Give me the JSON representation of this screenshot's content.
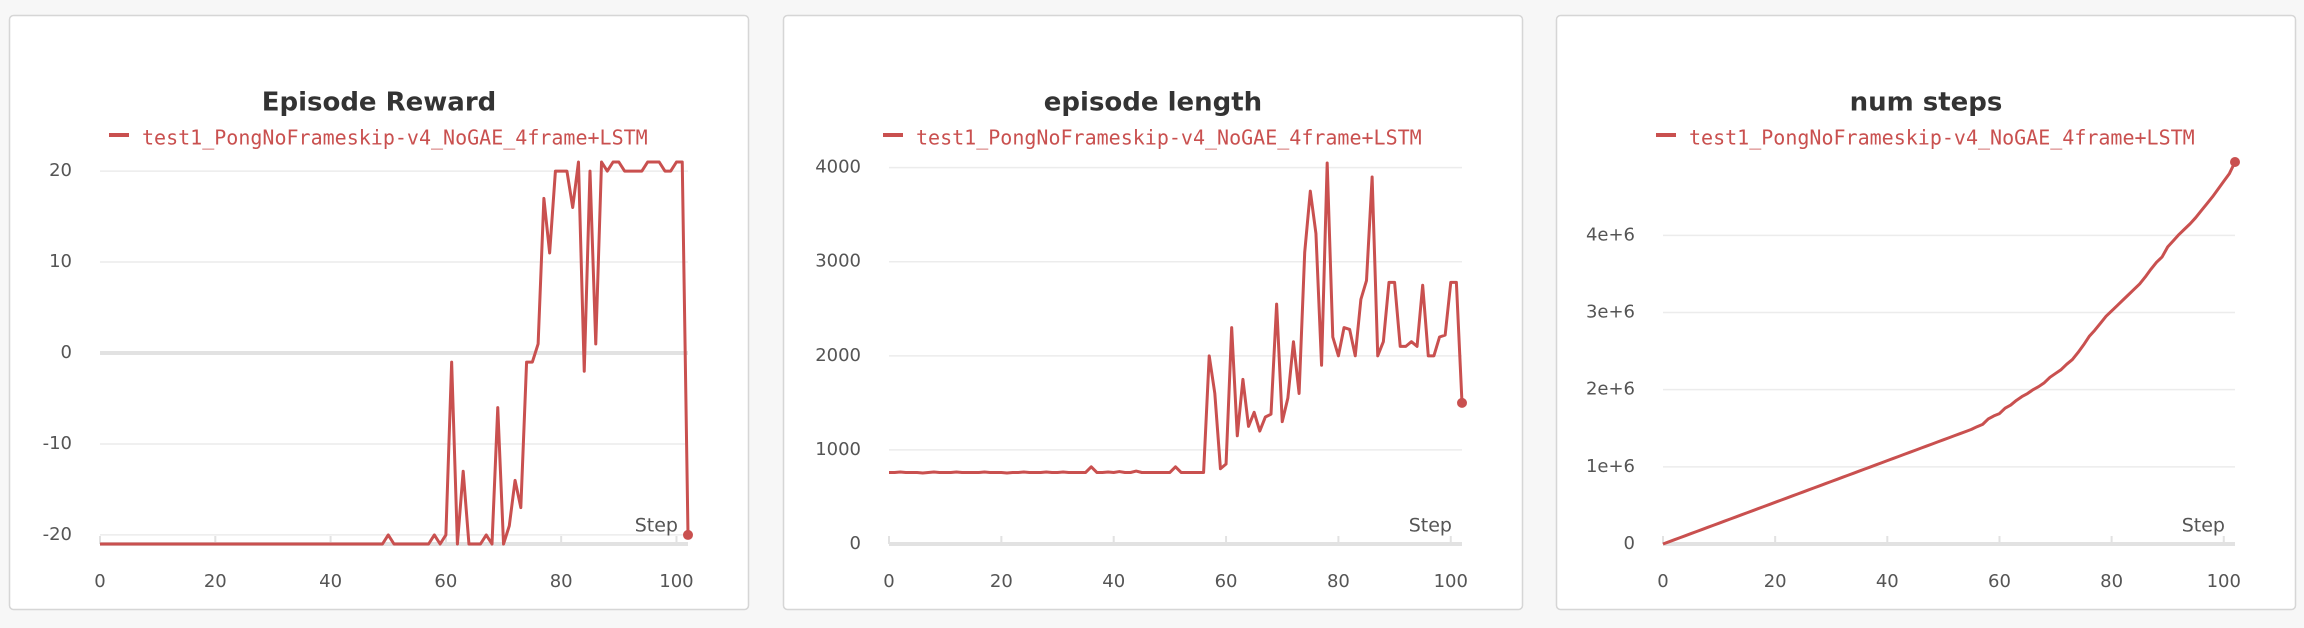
{
  "chart_data": [
    {
      "type": "line",
      "title": "Episode Reward",
      "xlabel": "Step",
      "x": [
        0,
        1,
        2,
        3,
        4,
        5,
        6,
        7,
        8,
        9,
        10,
        11,
        12,
        13,
        14,
        15,
        16,
        17,
        18,
        19,
        20,
        21,
        22,
        23,
        24,
        25,
        26,
        27,
        28,
        29,
        30,
        31,
        32,
        33,
        34,
        35,
        36,
        37,
        38,
        39,
        40,
        41,
        42,
        43,
        44,
        45,
        46,
        47,
        48,
        49,
        50,
        51,
        52,
        53,
        54,
        55,
        56,
        57,
        58,
        59,
        60,
        61,
        62,
        63,
        64,
        65,
        66,
        67,
        68,
        69,
        70,
        71,
        72,
        73,
        74,
        75,
        76,
        77,
        78,
        79,
        80,
        81,
        82,
        83,
        84,
        85,
        86,
        87,
        88,
        89,
        90,
        91,
        92,
        93,
        94,
        95,
        96,
        97,
        98,
        99,
        100,
        101,
        102
      ],
      "series": [
        {
          "name": "test1_PongNoFrameskip-v4_NoGAE_4frame+LSTM",
          "color": "#c9504f",
          "values": [
            -21,
            -21,
            -21,
            -21,
            -21,
            -21,
            -21,
            -21,
            -21,
            -21,
            -21,
            -21,
            -21,
            -21,
            -21,
            -21,
            -21,
            -21,
            -21,
            -21,
            -21,
            -21,
            -21,
            -21,
            -21,
            -21,
            -21,
            -21,
            -21,
            -21,
            -21,
            -21,
            -21,
            -21,
            -21,
            -21,
            -21,
            -21,
            -21,
            -21,
            -21,
            -21,
            -21,
            -21,
            -21,
            -21,
            -21,
            -21,
            -21,
            -21,
            -20,
            -21,
            -21,
            -21,
            -21,
            -21,
            -21,
            -21,
            -20,
            -21,
            -20,
            -1,
            -21,
            -13,
            -21,
            -21,
            -21,
            -20,
            -21,
            -6,
            -21,
            -19,
            -14,
            -17,
            -1,
            -1,
            1,
            17,
            11,
            20,
            20,
            20,
            16,
            21,
            -2,
            20,
            1,
            21,
            20,
            21,
            21,
            20,
            20,
            20,
            20,
            21,
            21,
            21,
            20,
            20,
            21,
            21,
            -20
          ]
        }
      ],
      "xlim": [
        0,
        102
      ],
      "xticks": [
        0,
        20,
        40,
        60,
        80,
        100
      ],
      "ylim": [
        -21,
        21
      ],
      "yticks": [
        -20,
        -10,
        0,
        10,
        20
      ],
      "grid": true
    },
    {
      "type": "line",
      "title": "episode length",
      "xlabel": "Step",
      "x": [
        0,
        1,
        2,
        3,
        4,
        5,
        6,
        7,
        8,
        9,
        10,
        11,
        12,
        13,
        14,
        15,
        16,
        17,
        18,
        19,
        20,
        21,
        22,
        23,
        24,
        25,
        26,
        27,
        28,
        29,
        30,
        31,
        32,
        33,
        34,
        35,
        36,
        37,
        38,
        39,
        40,
        41,
        42,
        43,
        44,
        45,
        46,
        47,
        48,
        49,
        50,
        51,
        52,
        53,
        54,
        55,
        56,
        57,
        58,
        59,
        60,
        61,
        62,
        63,
        64,
        65,
        66,
        67,
        68,
        69,
        70,
        71,
        72,
        73,
        74,
        75,
        76,
        77,
        78,
        79,
        80,
        81,
        82,
        83,
        84,
        85,
        86,
        87,
        88,
        89,
        90,
        91,
        92,
        93,
        94,
        95,
        96,
        97,
        98,
        99,
        100,
        101,
        102
      ],
      "series": [
        {
          "name": "test1_PongNoFrameskip-v4_NoGAE_4frame+LSTM",
          "color": "#c9504f",
          "values": [
            760,
            760,
            765,
            760,
            760,
            760,
            755,
            760,
            765,
            760,
            760,
            760,
            765,
            760,
            760,
            760,
            760,
            765,
            760,
            760,
            760,
            755,
            760,
            760,
            765,
            760,
            760,
            760,
            765,
            760,
            760,
            765,
            760,
            760,
            760,
            760,
            820,
            760,
            760,
            765,
            760,
            770,
            760,
            760,
            775,
            760,
            760,
            760,
            760,
            760,
            760,
            820,
            760,
            760,
            760,
            760,
            760,
            2000,
            1600,
            800,
            850,
            2300,
            1150,
            1750,
            1250,
            1400,
            1200,
            1350,
            1380,
            2550,
            1300,
            1550,
            2150,
            1600,
            3100,
            3750,
            3300,
            1900,
            4050,
            2200,
            2000,
            2300,
            2280,
            2000,
            2600,
            2800,
            3900,
            2000,
            2150,
            2780,
            2780,
            2100,
            2100,
            2150,
            2100,
            2750,
            2000,
            2000,
            2200,
            2220,
            2780,
            2780,
            1500
          ]
        }
      ],
      "xlim": [
        0,
        102
      ],
      "xticks": [
        0,
        20,
        40,
        60,
        80,
        100
      ],
      "ylim": [
        0,
        4060
      ],
      "yticks": [
        0,
        1000,
        2000,
        3000,
        4000
      ],
      "grid": true
    },
    {
      "type": "line",
      "title": "num steps",
      "xlabel": "Step",
      "x": [
        0,
        1,
        2,
        3,
        4,
        5,
        6,
        7,
        8,
        9,
        10,
        11,
        12,
        13,
        14,
        15,
        16,
        17,
        18,
        19,
        20,
        21,
        22,
        23,
        24,
        25,
        26,
        27,
        28,
        29,
        30,
        31,
        32,
        33,
        34,
        35,
        36,
        37,
        38,
        39,
        40,
        41,
        42,
        43,
        44,
        45,
        46,
        47,
        48,
        49,
        50,
        51,
        52,
        53,
        54,
        55,
        56,
        57,
        58,
        59,
        60,
        61,
        62,
        63,
        64,
        65,
        66,
        67,
        68,
        69,
        70,
        71,
        72,
        73,
        74,
        75,
        76,
        77,
        78,
        79,
        80,
        81,
        82,
        83,
        84,
        85,
        86,
        87,
        88,
        89,
        90,
        91,
        92,
        93,
        94,
        95,
        96,
        97,
        98,
        99,
        100,
        101,
        102
      ],
      "series": [
        {
          "name": "test1_PongNoFrameskip-v4_NoGAE_4frame+LSTM",
          "color": "#c9504f",
          "values": [
            0,
            27000,
            54000,
            81000,
            108000,
            135000,
            162000,
            189000,
            216000,
            243000,
            270000,
            297000,
            324000,
            351000,
            378000,
            405000,
            432000,
            459000,
            486000,
            513000,
            540000,
            567000,
            594000,
            621000,
            648000,
            675000,
            702000,
            729000,
            756000,
            783000,
            810000,
            837000,
            864000,
            891000,
            918000,
            945000,
            972000,
            999000,
            1026000,
            1053000,
            1080000,
            1107000,
            1134000,
            1161000,
            1188000,
            1215000,
            1242000,
            1269000,
            1296000,
            1323000,
            1350000,
            1377000,
            1404000,
            1431000,
            1458000,
            1485000,
            1520000,
            1550000,
            1620000,
            1660000,
            1690000,
            1760000,
            1800000,
            1860000,
            1910000,
            1950000,
            2000000,
            2040000,
            2090000,
            2160000,
            2210000,
            2260000,
            2330000,
            2390000,
            2480000,
            2580000,
            2690000,
            2770000,
            2860000,
            2950000,
            3020000,
            3090000,
            3160000,
            3230000,
            3300000,
            3370000,
            3460000,
            3560000,
            3650000,
            3720000,
            3850000,
            3930000,
            4010000,
            4080000,
            4150000,
            4230000,
            4320000,
            4410000,
            4500000,
            4600000,
            4700000,
            4800000,
            4950000
          ]
        }
      ],
      "xlim": [
        0,
        102
      ],
      "xticks": [
        0,
        20,
        40,
        60,
        80,
        100
      ],
      "ylim": [
        0,
        4950000
      ],
      "yticks": [
        0,
        {
          "value": 1000000,
          "label": "1e+6"
        },
        {
          "value": 2000000,
          "label": "2e+6"
        },
        {
          "value": 3000000,
          "label": "3e+6"
        },
        {
          "value": 4000000,
          "label": "4e+6"
        }
      ],
      "grid": true
    }
  ]
}
